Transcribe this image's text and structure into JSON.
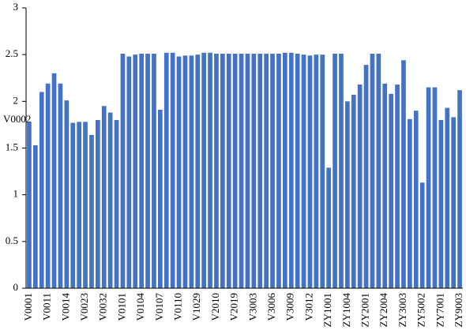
{
  "chart_data": {
    "type": "bar",
    "annotation": "V0002",
    "categories": [
      "V0001",
      null,
      null,
      "V0011",
      null,
      null,
      "V0014",
      null,
      null,
      "V0023",
      null,
      null,
      "V0032",
      null,
      null,
      "V0101",
      null,
      null,
      "V0104",
      null,
      null,
      "V0107",
      null,
      null,
      "V0110",
      null,
      null,
      "V1029",
      null,
      null,
      "V2010",
      null,
      null,
      "V2019",
      null,
      null,
      "V3003",
      null,
      null,
      "V3006",
      null,
      null,
      "V3009",
      null,
      null,
      "V3012",
      null,
      null,
      "ZY1001",
      null,
      null,
      "ZY1004",
      null,
      null,
      "ZY2001",
      null,
      null,
      "ZY2004",
      null,
      null,
      "ZY3003",
      null,
      null,
      "ZY5002",
      null,
      null,
      "ZY7001",
      null,
      null,
      "ZY9003"
    ],
    "values": [
      1.78,
      1.53,
      2.1,
      2.19,
      2.3,
      2.19,
      2.01,
      1.77,
      1.78,
      1.78,
      1.64,
      1.8,
      1.95,
      1.88,
      1.8,
      2.51,
      2.48,
      2.5,
      2.51,
      2.51,
      2.51,
      1.91,
      2.52,
      2.52,
      2.48,
      2.49,
      2.49,
      2.5,
      2.52,
      2.52,
      2.51,
      2.51,
      2.51,
      2.51,
      2.51,
      2.51,
      2.51,
      2.51,
      2.51,
      2.51,
      2.51,
      2.52,
      2.52,
      2.51,
      2.5,
      2.49,
      2.5,
      2.5,
      1.29,
      2.51,
      2.51,
      2.0,
      2.07,
      2.18,
      2.39,
      2.51,
      2.51,
      2.19,
      2.08,
      2.18,
      2.44,
      1.81,
      1.9,
      1.13,
      2.15,
      2.15,
      1.8,
      1.93,
      1.83,
      2.12
    ],
    "color": "#4472c4",
    "ylim": [
      0,
      3
    ],
    "yticks": [
      0,
      0.5,
      1,
      1.5,
      2,
      2.5,
      3
    ],
    "grid": false
  }
}
